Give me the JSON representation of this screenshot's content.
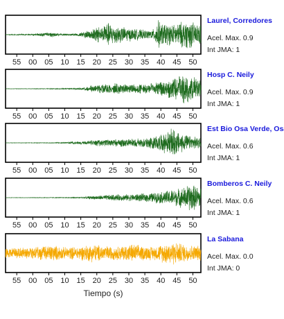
{
  "chart_data": {
    "type": "line",
    "xlabel": "Tiempo (s)",
    "tick_labels": [
      "55",
      "00",
      "05",
      "10",
      "15",
      "20",
      "25",
      "30",
      "35",
      "40",
      "45",
      "50"
    ],
    "labels": {
      "accel_prefix": "Acel. Max.",
      "jma_prefix": "Int JMA:"
    },
    "panels": [
      {
        "station": "Laurel, Corredores",
        "accel_max": "0.9",
        "int_jma": "1",
        "color": "#1e6b1e",
        "name_color": "#1a1adc",
        "envelope": [
          [
            -8,
            0.02
          ],
          [
            0,
            0.05
          ],
          [
            4,
            0.12
          ],
          [
            6,
            0.15
          ],
          [
            8,
            0.08
          ],
          [
            10,
            0.05
          ],
          [
            14,
            0.08
          ],
          [
            18,
            0.3
          ],
          [
            20,
            0.45
          ],
          [
            22,
            0.55
          ],
          [
            23,
            0.75
          ],
          [
            26,
            0.55
          ],
          [
            30,
            0.4
          ],
          [
            34,
            0.3
          ],
          [
            36,
            0.25
          ],
          [
            38,
            0.35
          ],
          [
            39,
            0.9
          ],
          [
            40,
            0.7
          ],
          [
            44,
            0.6
          ],
          [
            46,
            0.75
          ],
          [
            49,
            0.85
          ],
          [
            51,
            0.65
          ]
        ]
      },
      {
        "station": "Hosp C. Neily",
        "accel_max": "0.9",
        "int_jma": "1",
        "color": "#1e6b1e",
        "name_color": "#1a1adc",
        "envelope": [
          [
            -8,
            0.01
          ],
          [
            5,
            0.02
          ],
          [
            12,
            0.04
          ],
          [
            16,
            0.08
          ],
          [
            18,
            0.18
          ],
          [
            22,
            0.3
          ],
          [
            26,
            0.32
          ],
          [
            30,
            0.25
          ],
          [
            34,
            0.28
          ],
          [
            38,
            0.35
          ],
          [
            42,
            0.5
          ],
          [
            45,
            0.7
          ],
          [
            47,
            0.9
          ],
          [
            49,
            0.8
          ],
          [
            51,
            0.6
          ]
        ]
      },
      {
        "station": "Est Bio Osa Verde, Osa",
        "accel_max": "0.6",
        "int_jma": "1",
        "color": "#1e6b1e",
        "name_color": "#1a1adc",
        "envelope": [
          [
            -8,
            0.01
          ],
          [
            5,
            0.02
          ],
          [
            10,
            0.04
          ],
          [
            15,
            0.1
          ],
          [
            20,
            0.18
          ],
          [
            25,
            0.22
          ],
          [
            30,
            0.25
          ],
          [
            35,
            0.3
          ],
          [
            40,
            0.5
          ],
          [
            43,
            0.75
          ],
          [
            44,
            0.95
          ],
          [
            45,
            0.7
          ],
          [
            48,
            0.45
          ],
          [
            51,
            0.35
          ]
        ]
      },
      {
        "station": "Bomberos C. Neily",
        "accel_max": "0.6",
        "int_jma": "1",
        "color": "#1e6b1e",
        "name_color": "#1a1adc",
        "envelope": [
          [
            -8,
            0.01
          ],
          [
            10,
            0.02
          ],
          [
            15,
            0.04
          ],
          [
            20,
            0.12
          ],
          [
            25,
            0.18
          ],
          [
            30,
            0.2
          ],
          [
            35,
            0.25
          ],
          [
            40,
            0.35
          ],
          [
            44,
            0.5
          ],
          [
            47,
            0.6
          ],
          [
            49,
            0.85
          ],
          [
            51,
            0.7
          ]
        ]
      },
      {
        "station": "La Sabana",
        "accel_max": "0.0",
        "int_jma": "0",
        "color": "#f5a800",
        "name_color": "#1a1adc",
        "envelope": [
          [
            -8,
            0.3
          ],
          [
            0,
            0.35
          ],
          [
            6,
            0.5
          ],
          [
            10,
            0.35
          ],
          [
            14,
            0.4
          ],
          [
            19,
            0.55
          ],
          [
            22,
            0.45
          ],
          [
            26,
            0.4
          ],
          [
            31,
            0.55
          ],
          [
            34,
            0.45
          ],
          [
            38,
            0.4
          ],
          [
            41,
            0.6
          ],
          [
            44,
            0.7
          ],
          [
            47,
            0.55
          ],
          [
            51,
            0.45
          ]
        ]
      }
    ]
  }
}
